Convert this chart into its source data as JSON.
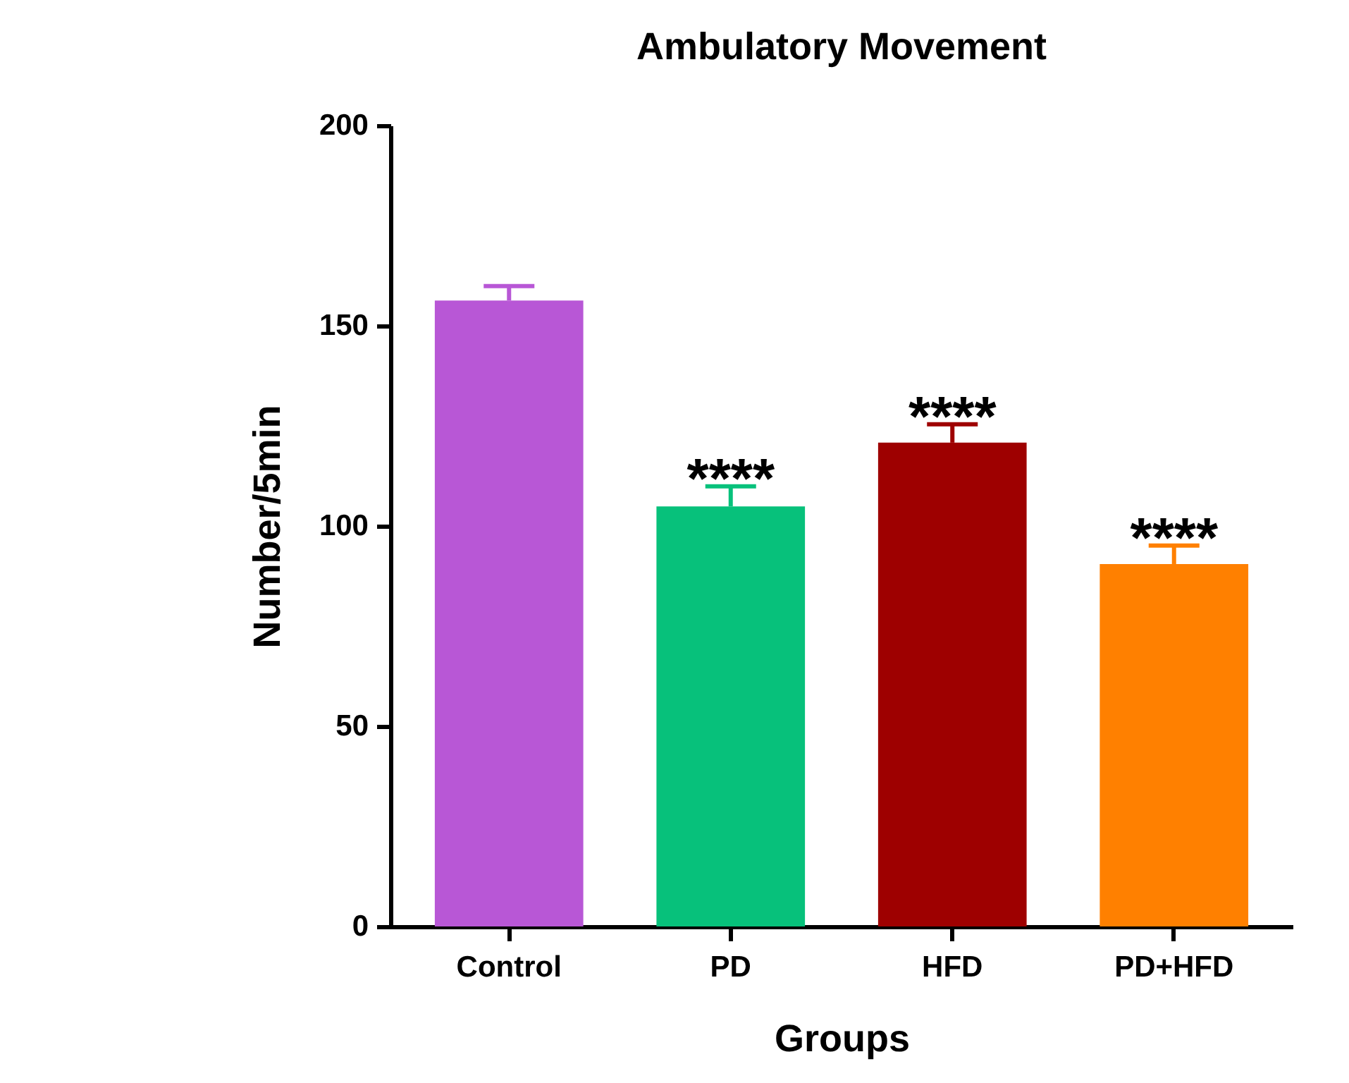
{
  "chart_data": {
    "type": "bar",
    "title": "Ambulatory Movement",
    "xlabel": "Groups",
    "ylabel": "Number/5min",
    "categories": [
      "Control",
      "PD",
      "HFD",
      "PD+HFD"
    ],
    "values": [
      156.3,
      104.9,
      120.8,
      90.5
    ],
    "colors": [
      "#b857d6",
      "#07c17b",
      "#9e0000",
      "#ff8000"
    ],
    "errors": [
      [
        156.3,
        159.9
      ],
      [
        104.9,
        109.9
      ],
      [
        120.8,
        125.4
      ],
      [
        90.5,
        95.1
      ]
    ],
    "ylim": [
      0,
      200
    ],
    "yticks": [
      0,
      50,
      100,
      150,
      200
    ],
    "grid": false,
    "legend": false,
    "annotations": [
      {
        "text": "****",
        "x": "PD",
        "y": 109.9
      },
      {
        "text": "****",
        "x": "HFD",
        "y": 125.4
      },
      {
        "text": "****",
        "x": "PD+HFD",
        "y": 95.1
      }
    ]
  }
}
